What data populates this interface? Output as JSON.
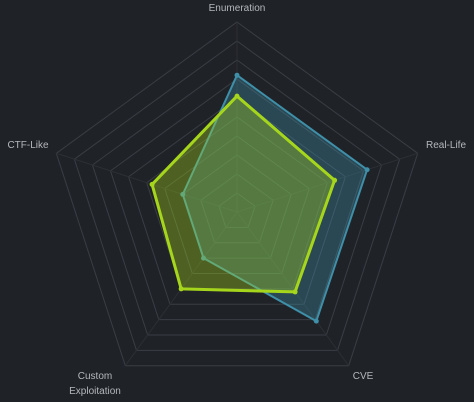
{
  "chart_data": {
    "type": "radar",
    "categories": [
      "Enumeration",
      "Real-Life",
      "CVE",
      "Custom Exploitation",
      "CTF-Like"
    ],
    "series": [
      {
        "color": "#3f8fa8",
        "values": [
          72,
          72,
          71,
          30,
          30
        ]
      },
      {
        "color": "#a6d61c",
        "values": [
          61,
          54,
          52,
          50,
          47
        ]
      }
    ],
    "ylim": [
      0,
      100
    ],
    "yticks": [
      10,
      20,
      30,
      40,
      50,
      60,
      70,
      80,
      90,
      100
    ],
    "grid": true
  }
}
